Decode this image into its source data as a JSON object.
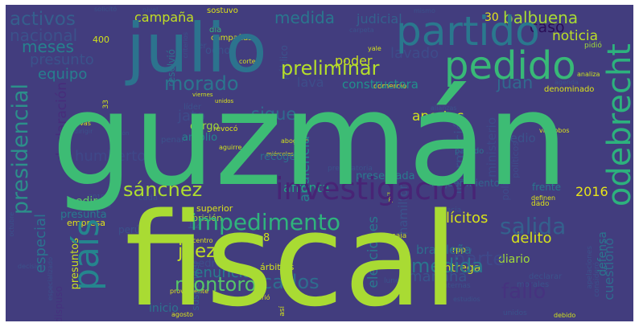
{
  "words": [
    {
      "t": "guzmán",
      "c": "#3dbc74"
    },
    {
      "t": "fiscal",
      "c": "#a9db33"
    },
    {
      "t": "julio",
      "c": "#2c738e"
    },
    {
      "t": "partido",
      "c": "#2a788e"
    },
    {
      "t": "pedido",
      "c": "#38b977"
    },
    {
      "t": "odebrecht",
      "c": "#2db27d"
    },
    {
      "t": "investigación",
      "c": "#482475"
    },
    {
      "t": "país",
      "c": "#25858e"
    },
    {
      "t": "impedimento",
      "c": "#2fb47c"
    },
    {
      "t": "salida",
      "c": "#34618d"
    },
    {
      "t": "presidencial",
      "c": "#2c8f8a"
    },
    {
      "t": "excandidato",
      "c": "#3a538b"
    },
    {
      "t": "morado",
      "c": "#2b758e"
    },
    {
      "t": "preliminar",
      "c": "#b5de2b"
    },
    {
      "t": "sánchez",
      "c": "#addc30"
    },
    {
      "t": "montoro",
      "c": "#56c667"
    },
    {
      "t": "carlos",
      "c": "#2e6d8e"
    },
    {
      "t": "juez",
      "c": "#c2df23"
    },
    {
      "t": "fallo",
      "c": "#46337f"
    },
    {
      "t": "parte",
      "c": "#3f4889"
    },
    {
      "t": "medida",
      "c": "#2a768e"
    },
    {
      "t": "activos",
      "c": "#355f8d"
    },
    {
      "t": "nacional",
      "c": "#3b528b"
    },
    {
      "t": "meses",
      "c": "#26818e"
    },
    {
      "t": "presunto",
      "c": "#3a538b"
    },
    {
      "t": "equipo",
      "c": "#277f8e"
    },
    {
      "t": "caso",
      "c": "#2a0e57"
    },
    {
      "t": "noticia",
      "c": "#bddf26"
    },
    {
      "t": "lavado",
      "c": "#3e4c8a"
    },
    {
      "t": "constructora",
      "c": "#21918c"
    },
    {
      "t": "poder",
      "c": "#c8e020"
    },
    {
      "t": "lava",
      "c": "#3d4e8a"
    },
    {
      "t": "juan",
      "c": "#306a8e"
    },
    {
      "t": "campaña",
      "c": "#c2df23"
    },
    {
      "t": "judicial",
      "c": "#34618d"
    },
    {
      "t": "30",
      "c": "#e5e419"
    },
    {
      "t": "balbuena",
      "c": "#a8db34"
    },
    {
      "t": "aportes",
      "c": "#cde11d"
    },
    {
      "t": "2016",
      "c": "#e8e419"
    },
    {
      "t": "jato",
      "c": "#3e4c8a"
    },
    {
      "t": "sigue",
      "c": "#306a8e"
    },
    {
      "t": "humberto",
      "c": "#3f4889"
    },
    {
      "t": "audiencia",
      "c": "#26818e"
    },
    {
      "t": "información",
      "c": "#3b528b"
    },
    {
      "t": "delito",
      "c": "#d5e21a"
    },
    {
      "t": "especial",
      "c": "#2c728e"
    },
    {
      "t": "denuncia",
      "c": "#287c8e"
    },
    {
      "t": "mañana",
      "c": "#39558c"
    },
    {
      "t": "ilícitos",
      "c": "#d8e219"
    },
    {
      "t": "elecciones",
      "c": "#2a778e"
    },
    {
      "t": "afronta",
      "c": "#22a884"
    },
    {
      "t": "declaración",
      "c": "#472d7b"
    },
    {
      "t": "cuestionó",
      "c": "#2f6c8e"
    },
    {
      "t": "medio",
      "c": "#3b528b"
    },
    {
      "t": "suspender",
      "c": "#365c8d"
    },
    {
      "t": "dispuso",
      "c": "#46327e"
    },
    {
      "t": "hamilton",
      "c": "#3b528b"
    },
    {
      "t": "brasileña",
      "c": "#2e6e8e"
    },
    {
      "t": "ministerio",
      "c": "#3e4a89"
    },
    {
      "t": "presentada",
      "c": "#297b8e"
    },
    {
      "t": "requerimiento",
      "c": "#32658e"
    },
    {
      "t": "recoger",
      "c": "#2d708e"
    },
    {
      "t": "cargo",
      "c": "#a0da39"
    },
    {
      "t": "amplio",
      "c": "#24868e"
    },
    {
      "t": "diario",
      "c": "#a0da39"
    },
    {
      "t": "entrega",
      "c": "#c8e020"
    },
    {
      "t": "superior",
      "c": "#d8e219"
    },
    {
      "t": "prisión",
      "c": "#a5db36"
    },
    {
      "t": "pedir",
      "c": "#65cb5e"
    },
    {
      "t": "presunta",
      "c": "#287c8e"
    },
    {
      "t": "empresa",
      "c": "#e1e418"
    },
    {
      "t": "árbitros",
      "c": "#d5e21a"
    },
    {
      "t": "pedro",
      "c": "#3d4e8a"
    },
    {
      "t": "presuntos",
      "c": "#cae11f"
    },
    {
      "t": "defensa",
      "c": "#2a768e"
    },
    {
      "t": "sostuvo",
      "c": "#dde318"
    },
    {
      "t": "resolvió",
      "c": "#2c738e"
    },
    {
      "t": "frente",
      "c": "#2a788e"
    },
    {
      "t": "político",
      "c": "#3e4c8a"
    },
    {
      "t": "políticos",
      "c": "#3e4c8a"
    },
    {
      "t": "400",
      "c": "#d0e11c"
    },
    {
      "t": "ser",
      "c": "#3b528b"
    },
    {
      "t": "ocho",
      "c": "#3b528b"
    },
    {
      "t": "día",
      "c": "#35b779"
    },
    {
      "t": "campañas",
      "c": "#d5e21a"
    },
    {
      "t": "público",
      "c": "#3b528b"
    },
    {
      "t": "comercio",
      "c": "#dde318"
    },
    {
      "t": "pidió",
      "c": "#a0da39"
    },
    {
      "t": "yale",
      "c": "#d5e21a"
    },
    {
      "t": "analiza",
      "c": "#c8e020"
    },
    {
      "t": "denominado",
      "c": "#dde318"
    },
    {
      "t": "viernes",
      "c": "#d0e11c"
    },
    {
      "t": "unidos",
      "c": "#dde318"
    },
    {
      "t": "villalobos",
      "c": "#dde318"
    },
    {
      "t": "definen",
      "c": "#dde318"
    },
    {
      "t": "dado",
      "c": "#dde318"
    },
    {
      "t": "líder",
      "c": "#3b528b"
    },
    {
      "t": "penal",
      "c": "#3b528b"
    },
    {
      "t": "nuevas",
      "c": "#d5e21a"
    },
    {
      "t": "dirigir",
      "c": "#3b528b"
    },
    {
      "t": "revocó",
      "c": "#dde318"
    },
    {
      "t": "abogado",
      "c": "#d0e11c"
    },
    {
      "t": "aguirre",
      "c": "#d0e11c"
    },
    {
      "t": "miércoles",
      "c": "#d0e11c"
    },
    {
      "t": "sesión",
      "c": "#3b528b"
    },
    {
      "t": "pasado",
      "c": "#2c738e"
    },
    {
      "t": "sala",
      "c": "#d0e11c"
    },
    {
      "t": "evalúa",
      "c": "#3b528b"
    },
    {
      "t": "rpp",
      "c": "#d0e11c"
    },
    {
      "t": "morales",
      "c": "#3b528b"
    },
    {
      "t": "declarar",
      "c": "#3b528b"
    },
    {
      "t": "internas",
      "c": "#3b528b"
    },
    {
      "t": "estudios",
      "c": "#3b528b"
    },
    {
      "t": "proveniente",
      "c": "#dde318"
    },
    {
      "t": "refirió",
      "c": "#dde318"
    },
    {
      "t": "así",
      "c": "#d0e11c"
    },
    {
      "t": "inicio",
      "c": "#2c738e"
    },
    {
      "t": "agosto",
      "c": "#dde318"
    },
    {
      "t": "debido",
      "c": "#d0e11c"
    },
    {
      "t": "apelaciones",
      "c": "#3b528b"
    },
    {
      "t": "consideró",
      "c": "#3b528b"
    },
    {
      "t": "centro",
      "c": "#dde318"
    },
    {
      "t": "perú",
      "c": "#3b528b"
    },
    {
      "t": "decisión",
      "c": "#3b528b"
    },
    {
      "t": "especializado",
      "c": "#3b528b"
    },
    {
      "t": "octubre",
      "c": "#3b528b"
    },
    {
      "t": "mil",
      "c": "#d0e11c"
    },
    {
      "t": "corte",
      "c": "#d0e11c"
    },
    {
      "t": "abrir",
      "c": "#3b528b"
    },
    {
      "t": "después",
      "c": "#3b528b"
    },
    {
      "t": "conocerse",
      "c": "#3b528b"
    },
    {
      "t": "haber",
      "c": "#3b528b"
    },
    {
      "t": "decidió",
      "c": "#3b528b"
    },
    {
      "t": "enero",
      "c": "#3b528b"
    },
    {
      "t": "carpeta",
      "c": "#3b528b"
    },
    {
      "t": "agenda",
      "c": "#3b528b"
    },
    {
      "t": "solicitó",
      "c": "#3b528b"
    },
    {
      "t": "nivel",
      "c": "#3b528b"
    },
    {
      "t": "mismo",
      "c": "#3b528b"
    },
    {
      "t": "hacia",
      "c": "#3b528b"
    },
    {
      "t": "fiscalía",
      "c": "#3b528b"
    },
    {
      "t": "2019",
      "c": "#3b528b"
    },
    {
      "t": "cada",
      "c": "#3b528b"
    },
    {
      "t": "preparatoria",
      "c": "#3b528b"
    },
    {
      "t": "unidos",
      "c": "#3b528b"
    },
    {
      "t": "lunes",
      "c": "#3b528b"
    },
    {
      "t": "12",
      "c": "#3b528b"
    },
    {
      "t": "8",
      "c": "#d0e11c"
    },
    {
      "t": "33",
      "c": "#d0e11c"
    },
    {
      "t": "criterios",
      "c": "#3b528b"
    },
    {
      "t": "fiscales",
      "c": "#3b528b"
    },
    {
      "t": "alianzas",
      "c": "#3b528b"
    }
  ]
}
